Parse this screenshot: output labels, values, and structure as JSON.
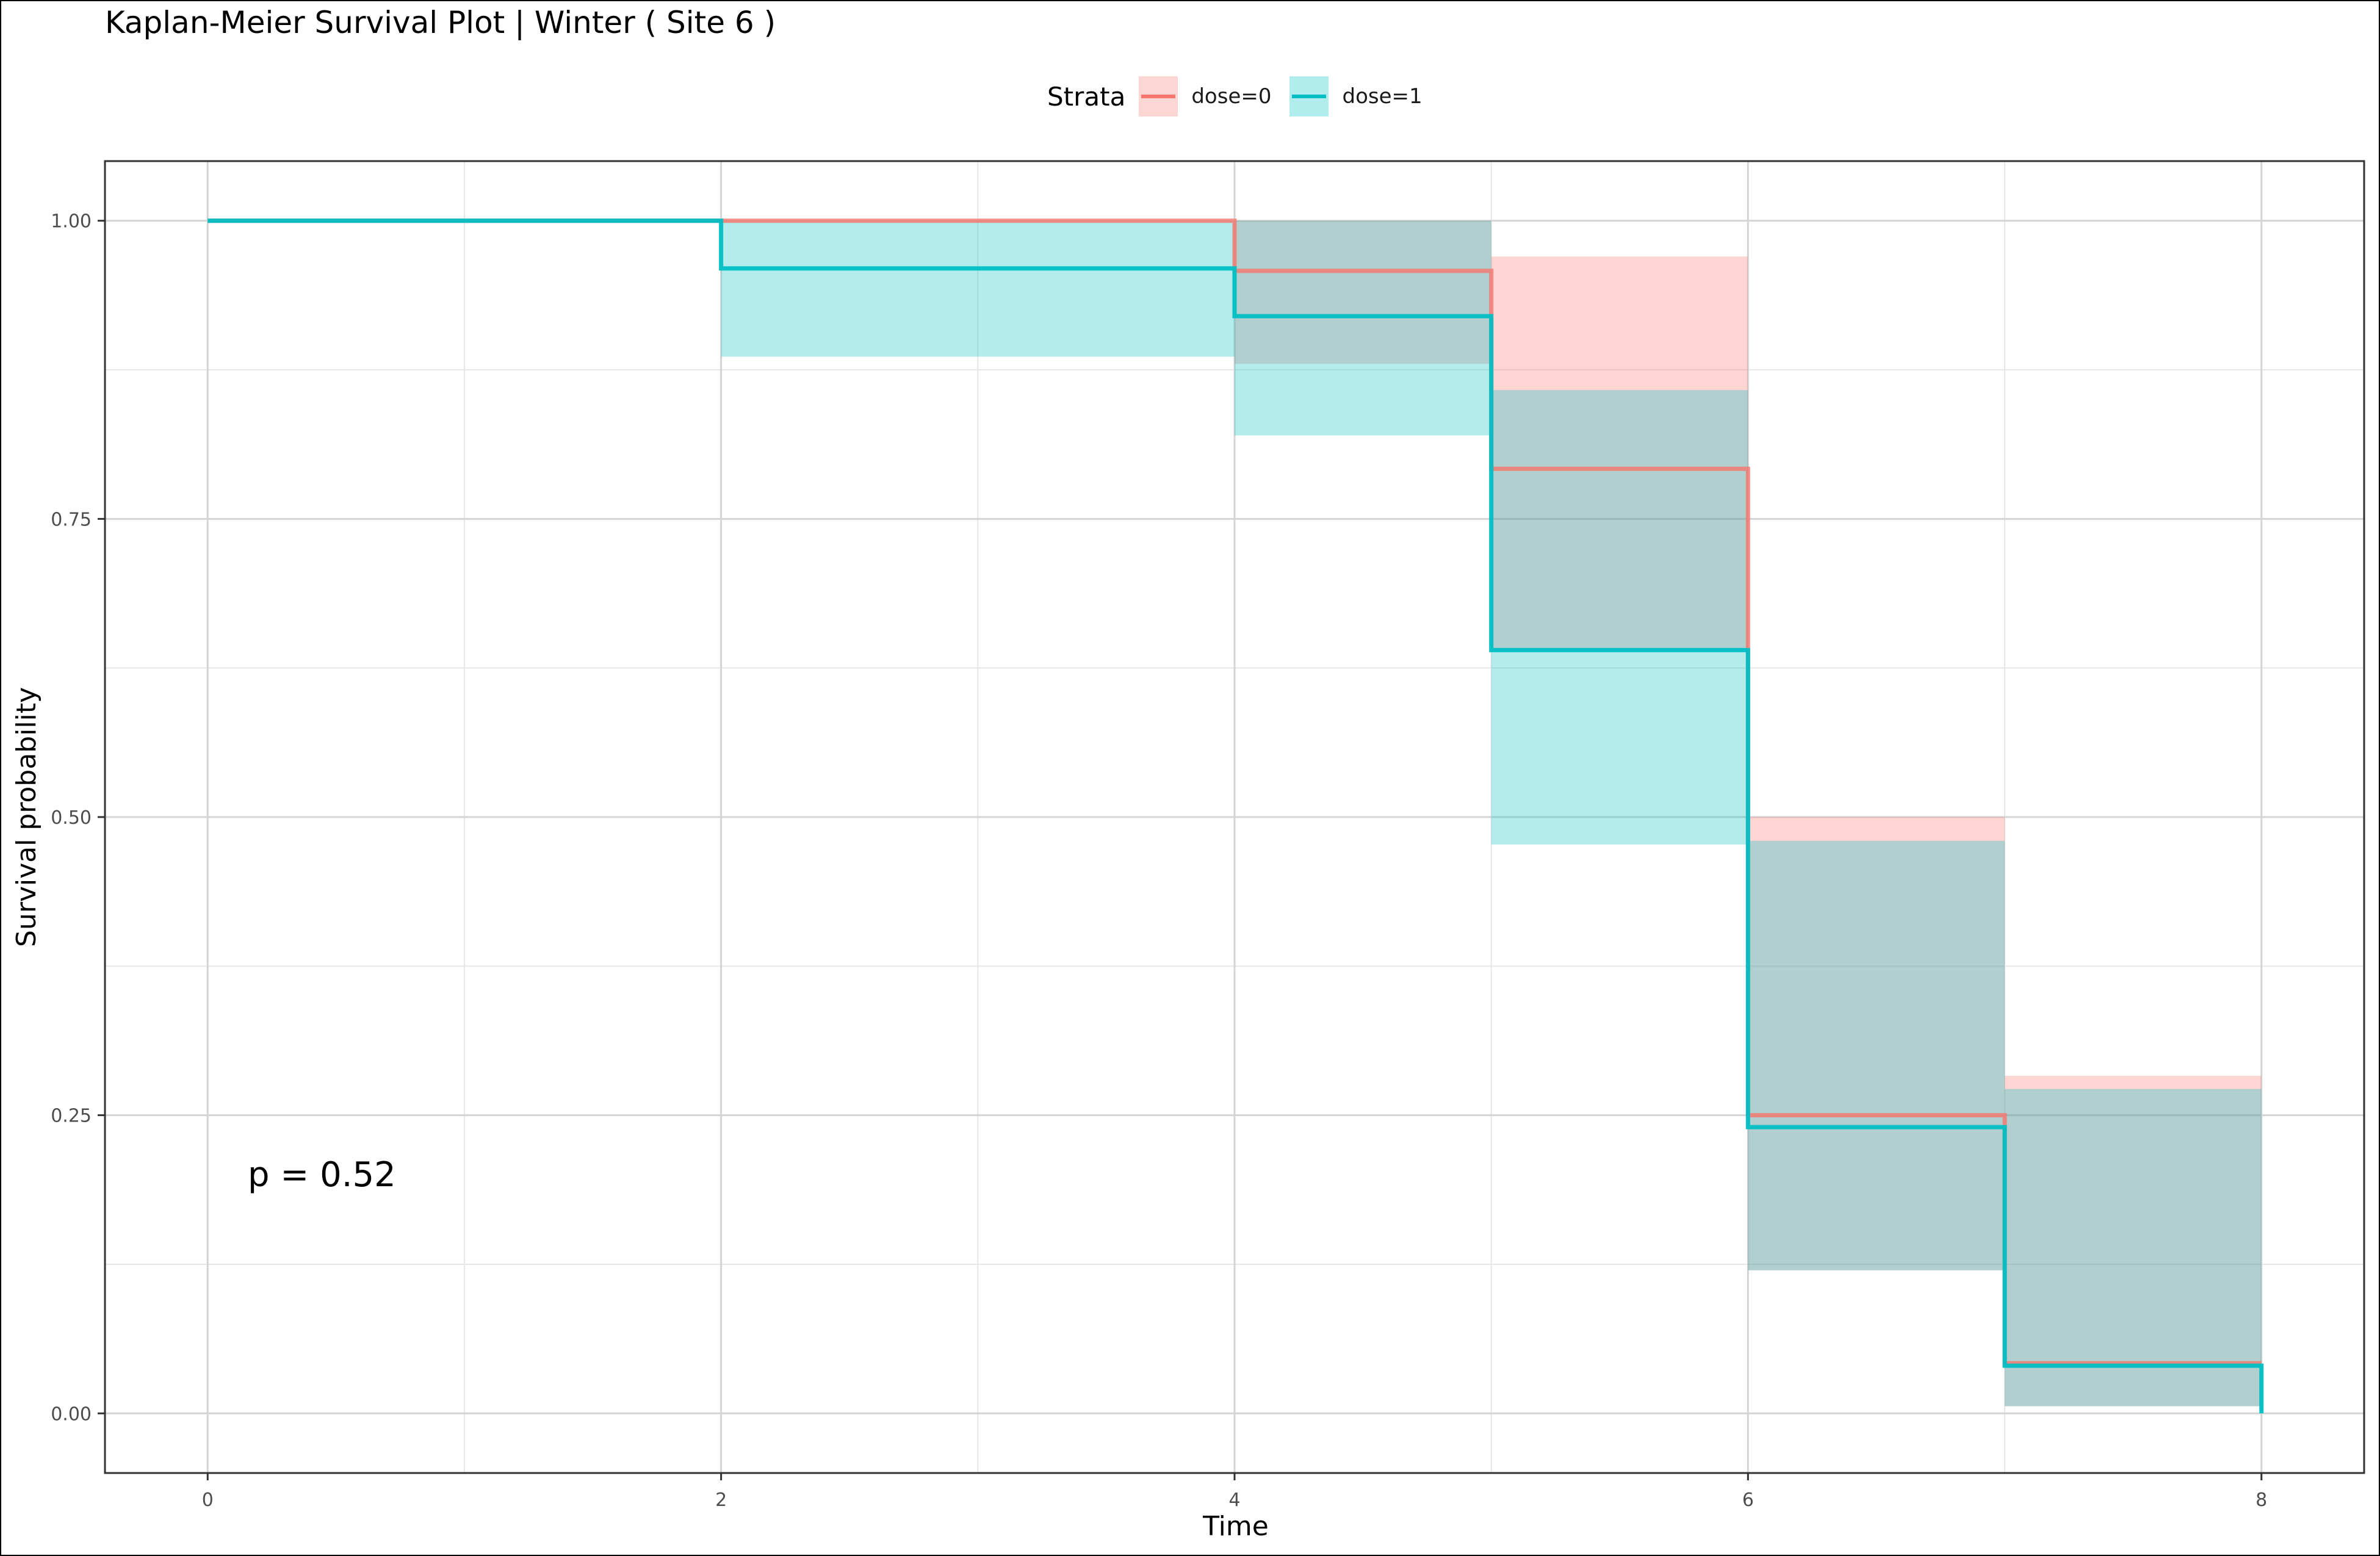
{
  "chart_data": {
    "type": "line",
    "title": "Kaplan-Meier Survival Plot | Winter  ( Site 6 )",
    "xlabel": "Time",
    "ylabel": "Survival probability",
    "xlim": [
      -0.4,
      8.4
    ],
    "ylim": [
      -0.05,
      1.05
    ],
    "x_ticks": [
      0,
      2,
      4,
      6,
      8
    ],
    "y_ticks": [
      0,
      0.25,
      0.5,
      0.75,
      1
    ],
    "x_tick_labels": [
      "0",
      "2",
      "4",
      "6",
      "8"
    ],
    "y_tick_labels": [
      "0.00",
      "0.25",
      "0.50",
      "0.75",
      "1.00"
    ],
    "grid": true,
    "legend": {
      "title": "Strata",
      "position": "top",
      "items": [
        {
          "label": "dose=0",
          "color": "#F8766D"
        },
        {
          "label": "dose=1",
          "color": "#00BFC4"
        }
      ]
    },
    "annotation": "p = 0.52",
    "series": [
      {
        "name": "dose=0",
        "color": "#F8766D",
        "step_x": [
          0,
          4,
          5,
          6,
          7,
          8
        ],
        "step_y": [
          1.0,
          0.958,
          0.792,
          0.25,
          0.042,
          0.042
        ],
        "lower": [
          1.0,
          0.88,
          0.64,
          0.12,
          0.006,
          0.006
        ],
        "upper": [
          1.0,
          1.0,
          0.97,
          0.5,
          0.283,
          0.283
        ],
        "end_x": 8
      },
      {
        "name": "dose=1",
        "color": "#00BFC4",
        "step_x": [
          0,
          2,
          4,
          5,
          6,
          7,
          8
        ],
        "step_y": [
          1.0,
          0.96,
          0.92,
          0.64,
          0.24,
          0.04,
          0.0
        ],
        "lower": [
          1.0,
          0.886,
          0.82,
          0.477,
          0.12,
          0.006,
          0.0
        ],
        "upper": [
          1.0,
          1.0,
          1.0,
          0.858,
          0.48,
          0.272,
          0.0
        ],
        "end_x": 8
      }
    ],
    "colors": {
      "dose0": "#F8766D",
      "dose1": "#00BFC4",
      "dose0_band": "#FCD6D3",
      "dose1_band": "#B2EDEE",
      "overlap_band": "#B3CCCB"
    }
  }
}
